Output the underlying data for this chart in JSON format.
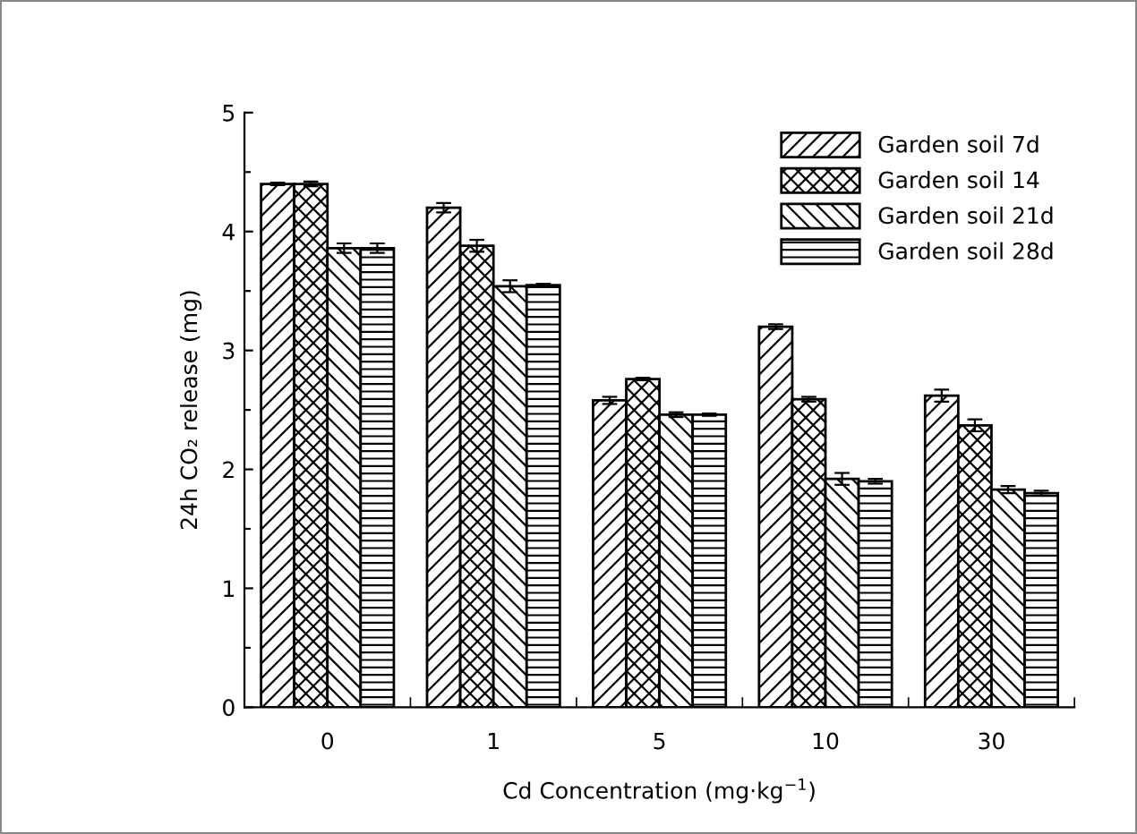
{
  "chart_data": {
    "type": "bar",
    "xlabel": "Cd Concentration (mg·kg$^{−1}$)",
    "ylabel": "24h CO₂ release (mg)",
    "categories": [
      "0",
      "1",
      "5",
      "10",
      "30"
    ],
    "series": [
      {
        "name": "Garden soil 7d",
        "color": "#000000",
        "values": [
          4.4,
          4.2,
          2.58,
          3.2,
          2.62
        ],
        "errors": [
          0.01,
          0.04,
          0.03,
          0.02,
          0.05
        ]
      },
      {
        "name": "Garden soil 14",
        "color": "#000000",
        "values": [
          4.4,
          3.88,
          2.76,
          2.59,
          2.37
        ],
        "errors": [
          0.02,
          0.05,
          0.01,
          0.02,
          0.05
        ]
      },
      {
        "name": "Garden soil 21d",
        "color": "#000000",
        "values": [
          3.86,
          3.54,
          2.46,
          1.92,
          1.83
        ],
        "errors": [
          0.04,
          0.05,
          0.02,
          0.05,
          0.03
        ]
      },
      {
        "name": "Garden soil 28d",
        "color": "#000000",
        "values": [
          3.86,
          3.55,
          2.46,
          1.9,
          1.8
        ],
        "errors": [
          0.04,
          0.01,
          0.01,
          0.02,
          0.02
        ]
      }
    ],
    "ylim": [
      0,
      5
    ],
    "yticks": [
      0,
      {
        "value": 0.5,
        "label": null
      },
      1,
      {
        "value": 1.5,
        "label": null
      },
      2,
      {
        "value": 2.5,
        "label": null
      },
      3,
      {
        "value": 3.5,
        "label": null
      },
      4,
      {
        "value": 4.5,
        "label": null
      },
      5
    ],
    "legend": "top right",
    "grid": false
  }
}
